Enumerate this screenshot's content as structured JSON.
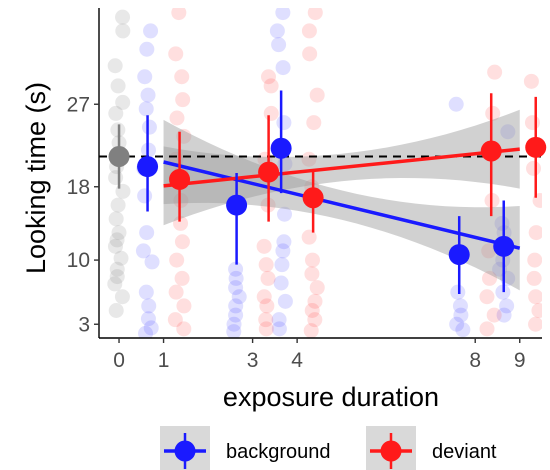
{
  "chart_data": {
    "type": "scatter",
    "xlabel": "exposure duration",
    "ylabel": "Looking time (s)",
    "x_ticks": [
      0,
      1,
      3,
      4,
      8,
      9
    ],
    "y_ticks": [
      3,
      10,
      18,
      27
    ],
    "xlim": [
      -0.45,
      9.5
    ],
    "ylim": [
      1.5,
      37.5
    ],
    "reference_line": {
      "y": 21.3,
      "style": "dashed",
      "color": "#000000"
    },
    "legend": {
      "position": "bottom"
    },
    "baseline_point": {
      "x": 0,
      "mean": 21.3,
      "lower": 17.8,
      "upper": 24.8,
      "color": "#808080"
    },
    "series": [
      {
        "name": "background",
        "color": "#1a1aff",
        "means": [
          {
            "x": 1,
            "mean": 20.2,
            "lower": 15.3,
            "upper": 25.8
          },
          {
            "x": 3,
            "mean": 16.0,
            "lower": 9.5,
            "upper": 19.5
          },
          {
            "x": 4,
            "mean": 22.2,
            "lower": 17.3,
            "upper": 28.5
          },
          {
            "x": 8,
            "mean": 10.6,
            "lower": 6.3,
            "upper": 14.8
          },
          {
            "x": 9,
            "mean": 11.5,
            "lower": 6.5,
            "upper": 16.5
          }
        ],
        "fit": {
          "x_start": 1,
          "y_start": 20.7,
          "x_end": 9,
          "y_end": 11.3
        },
        "raw_points_note": "individual observations shown as faint jittered dots"
      },
      {
        "name": "deviant",
        "color": "#ff1a1a",
        "means": [
          {
            "x": 1,
            "mean": 18.8,
            "lower": 14.2,
            "upper": 24.0
          },
          {
            "x": 3,
            "mean": 19.6,
            "lower": 14.2,
            "upper": 25.8
          },
          {
            "x": 4,
            "mean": 16.8,
            "lower": 13.0,
            "upper": 19.7
          },
          {
            "x": 8,
            "mean": 21.9,
            "lower": 14.8,
            "upper": 28.2
          },
          {
            "x": 9,
            "mean": 22.3,
            "lower": 16.8,
            "upper": 27.8
          }
        ],
        "fit": {
          "x_start": 1,
          "y_start": 18.1,
          "x_end": 9,
          "y_end": 22.1
        }
      }
    ],
    "raw_points": {
      "baseline": [
        [
          0,
          36.5
        ],
        [
          0,
          35.0
        ],
        [
          0,
          31.2
        ],
        [
          0,
          29.0
        ],
        [
          0,
          27.2
        ],
        [
          0,
          26.0
        ],
        [
          0,
          24.2
        ],
        [
          0,
          22.8
        ],
        [
          0,
          21.5
        ],
        [
          0,
          20.2
        ],
        [
          0,
          19.0
        ],
        [
          0,
          17.5
        ],
        [
          0,
          16.0
        ],
        [
          0,
          14.5
        ],
        [
          0,
          13.0
        ],
        [
          0,
          12.2
        ],
        [
          0,
          11.5
        ],
        [
          0,
          10.2
        ],
        [
          0,
          9.0
        ],
        [
          0,
          8.2
        ],
        [
          0,
          7.4
        ],
        [
          0,
          6.0
        ],
        [
          0,
          4.5
        ]
      ],
      "background": [
        [
          1,
          35.0
        ],
        [
          1,
          33.0
        ],
        [
          1,
          30.0
        ],
        [
          1,
          28.0
        ],
        [
          1,
          26.5
        ],
        [
          1,
          24.5
        ],
        [
          1,
          22.0
        ],
        [
          1,
          20.0
        ],
        [
          1,
          17.0
        ],
        [
          1,
          13.0
        ],
        [
          1,
          11.0
        ],
        [
          1,
          9.8
        ],
        [
          1,
          6.5
        ],
        [
          1,
          5.0
        ],
        [
          1,
          3.6
        ],
        [
          1,
          2.6
        ],
        [
          1,
          2.0
        ],
        [
          3,
          9.0
        ],
        [
          3,
          8.0
        ],
        [
          3,
          7.0
        ],
        [
          3,
          6.0
        ],
        [
          3,
          5.0
        ],
        [
          3,
          4.0
        ],
        [
          3,
          3.0
        ],
        [
          3,
          2.2
        ],
        [
          4,
          37.0
        ],
        [
          4,
          35.0
        ],
        [
          4,
          33.5
        ],
        [
          4,
          31.0
        ],
        [
          4,
          25.0
        ],
        [
          4,
          20.5
        ],
        [
          4,
          15.0
        ],
        [
          4,
          12.0
        ],
        [
          4,
          11.0
        ],
        [
          4,
          9.5
        ],
        [
          4,
          7.5
        ],
        [
          4,
          5.5
        ],
        [
          4,
          3.5
        ],
        [
          4,
          2.5
        ],
        [
          8,
          27.0
        ],
        [
          8,
          6.5
        ],
        [
          8,
          5.0
        ],
        [
          8,
          4.0
        ],
        [
          8,
          3.0
        ],
        [
          8,
          2.4
        ],
        [
          9,
          24.0
        ],
        [
          9,
          14.0
        ],
        [
          9,
          13.0
        ],
        [
          9,
          10.0
        ],
        [
          9,
          9.0
        ],
        [
          9,
          8.0
        ],
        [
          9,
          6.5
        ],
        [
          9,
          5.0
        ],
        [
          9,
          4.0
        ]
      ],
      "deviant": [
        [
          1,
          37.0
        ],
        [
          1,
          32.5
        ],
        [
          1,
          30.0
        ],
        [
          1,
          27.5
        ],
        [
          1,
          25.5
        ],
        [
          1,
          23.5
        ],
        [
          1,
          21.0
        ],
        [
          1,
          19.5
        ],
        [
          1,
          16.5
        ],
        [
          1,
          14.0
        ],
        [
          1,
          12.0
        ],
        [
          1,
          10.0
        ],
        [
          1,
          8.0
        ],
        [
          1,
          6.5
        ],
        [
          1,
          5.0
        ],
        [
          1,
          3.5
        ],
        [
          1,
          2.5
        ],
        [
          3,
          30.0
        ],
        [
          3,
          29.0
        ],
        [
          3,
          26.0
        ],
        [
          3,
          21.0
        ],
        [
          3,
          16.0
        ],
        [
          3,
          11.5
        ],
        [
          3,
          9.5
        ],
        [
          3,
          8.0
        ],
        [
          3,
          6.0
        ],
        [
          3,
          5.0
        ],
        [
          3,
          3.5
        ],
        [
          3,
          2.5
        ],
        [
          4,
          37.0
        ],
        [
          4,
          35.0
        ],
        [
          4,
          32.5
        ],
        [
          4,
          28.0
        ],
        [
          4,
          25.0
        ],
        [
          4,
          21.0
        ],
        [
          4,
          18.0
        ],
        [
          4,
          12.5
        ],
        [
          4,
          10.0
        ],
        [
          4,
          8.5
        ],
        [
          4,
          7.0
        ],
        [
          4,
          5.5
        ],
        [
          4,
          4.5
        ],
        [
          4,
          3.5
        ],
        [
          4,
          2.3
        ],
        [
          8,
          30.5
        ],
        [
          8,
          26.0
        ],
        [
          8,
          16.5
        ],
        [
          8,
          11.0
        ],
        [
          8,
          8.0
        ],
        [
          8,
          6.0
        ],
        [
          8,
          4.0
        ],
        [
          8,
          2.5
        ],
        [
          9,
          29.5
        ],
        [
          9,
          25.0
        ],
        [
          9,
          20.0
        ],
        [
          9,
          16.5
        ],
        [
          9,
          13.0
        ],
        [
          9,
          10.0
        ],
        [
          9,
          8.0
        ],
        [
          9,
          6.0
        ],
        [
          9,
          4.5
        ],
        [
          9,
          3.0
        ]
      ]
    }
  }
}
